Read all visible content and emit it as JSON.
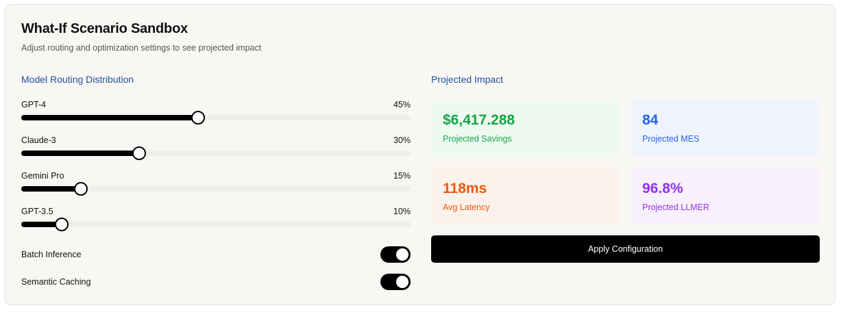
{
  "header": {
    "title": "What-If Scenario Sandbox",
    "subtitle": "Adjust routing and optimization settings to see projected impact"
  },
  "routing": {
    "title": "Model Routing Distribution",
    "models": [
      {
        "label": "GPT-4",
        "value_text": "45%",
        "percent": 45
      },
      {
        "label": "Claude-3",
        "value_text": "30%",
        "percent": 30
      },
      {
        "label": "Gemini Pro",
        "value_text": "15%",
        "percent": 15
      },
      {
        "label": "GPT-3.5",
        "value_text": "10%",
        "percent": 10
      }
    ]
  },
  "toggles": [
    {
      "label": "Batch Inference",
      "on": true
    },
    {
      "label": "Semantic Caching",
      "on": true
    }
  ],
  "impact": {
    "title": "Projected Impact",
    "metrics": [
      {
        "value": "$6,417.288",
        "label": "Projected Savings",
        "color": "#16a34a"
      },
      {
        "value": "84",
        "label": "Projected MES",
        "color": "#2563eb"
      },
      {
        "value": "118ms",
        "label": "Avg Latency",
        "color": "#ea580c"
      },
      {
        "value": "96.8%",
        "label": "Projected LLMER",
        "color": "#9333ea"
      }
    ]
  },
  "apply_button": {
    "label": "Apply Configuration"
  }
}
